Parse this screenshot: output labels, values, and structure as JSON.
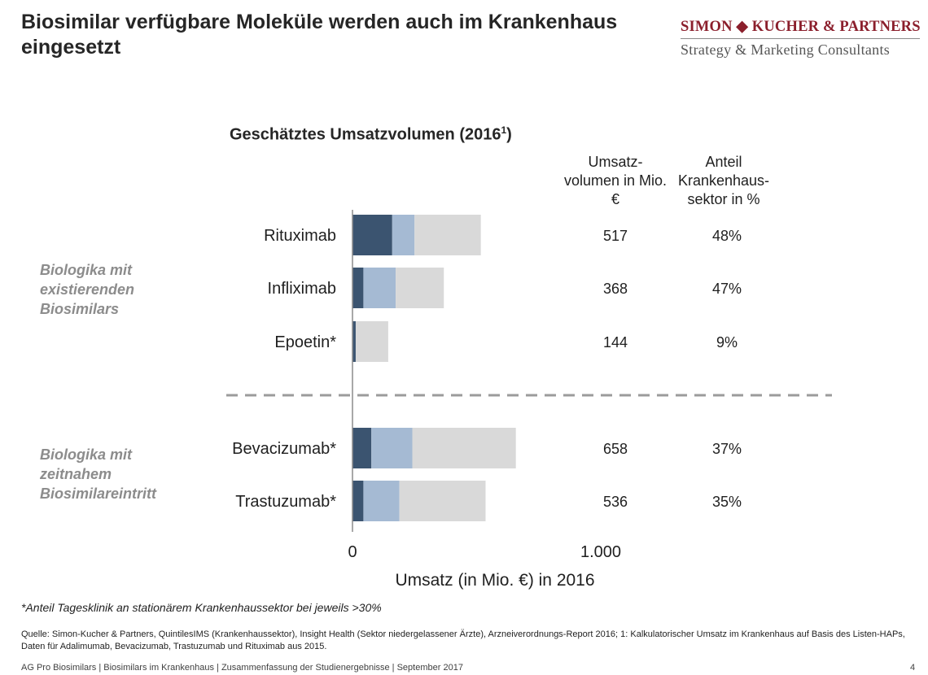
{
  "title": "Biosimilar verfügbare Moleküle werden auch im Krankenhaus eingesetzt",
  "logo": {
    "brand": "SIMON ◆ KUCHER & PARTNERS",
    "tagline": "Strategy & Marketing Consultants",
    "brand_color": "#8b1f2c"
  },
  "columns": {
    "volume_header": [
      "Umsatz-",
      "volumen in Mio.",
      "€"
    ],
    "share_header": [
      "Anteil",
      "Krankenhaus-",
      "sektor in %"
    ]
  },
  "groups": [
    {
      "label": [
        "Biologika mit",
        "existierenden",
        "Biosimilars"
      ]
    },
    {
      "label": [
        "Biologika mit",
        "zeitnahem",
        "Biosimilareintritt"
      ]
    }
  ],
  "colors": {
    "segment_dark": "#3b5470",
    "segment_mid": "#a5bad3",
    "segment_light": "#d9d9d9",
    "axis": "#8c8c8c",
    "divider": "#9b9b9b",
    "group_label": "#8c8c8c"
  },
  "chart_data": {
    "type": "bar",
    "orientation": "horizontal",
    "stacked": true,
    "title": "Geschätztes Umsatzvolumen (2016",
    "title_superscript": "1",
    "title_suffix": ")",
    "xlabel": "Umsatz (in Mio. €) in 2016",
    "xlim": [
      0,
      1000
    ],
    "xticks": [
      0,
      1000
    ],
    "xtick_labels": [
      "0",
      "1.000"
    ],
    "categories": [
      "Rituximab",
      "Infliximab",
      "Epoetin*",
      "Bevacizumab*",
      "Trastuzumab*"
    ],
    "group_of_category": [
      0,
      0,
      0,
      1,
      1
    ],
    "series": [
      {
        "name": "dark",
        "values": [
          160,
          44,
          13,
          76,
          44
        ]
      },
      {
        "name": "mid",
        "values": [
          90,
          130,
          0,
          165,
          145
        ]
      },
      {
        "name": "light",
        "values": [
          267,
          194,
          131,
          417,
          347
        ]
      }
    ],
    "total_labels": [
      "517",
      "368",
      "144",
      "658",
      "536"
    ],
    "share_labels": [
      "48%",
      "47%",
      "9%",
      "37%",
      "35%"
    ]
  },
  "footnote": "*Anteil Tagesklinik an stationärem Krankenhaussektor bei jeweils >30%",
  "source": "Quelle: Simon-Kucher & Partners, QuintilesIMS (Krankenhaussektor), Insight Health (Sektor niedergelassener Ärzte), Arzneiverordnungs-Report 2016; 1: Kalkulatorischer Umsatz im Krankenhaus auf Basis des Listen-HAPs, Daten für Adalimumab, Bevacizumab, Trastuzumab und Rituximab aus 2015.",
  "footer": "AG Pro Biosimilars | Biosimilars im Krankenhaus | Zusammenfassung der Studienergebnisse | September 2017",
  "page_number": "4"
}
